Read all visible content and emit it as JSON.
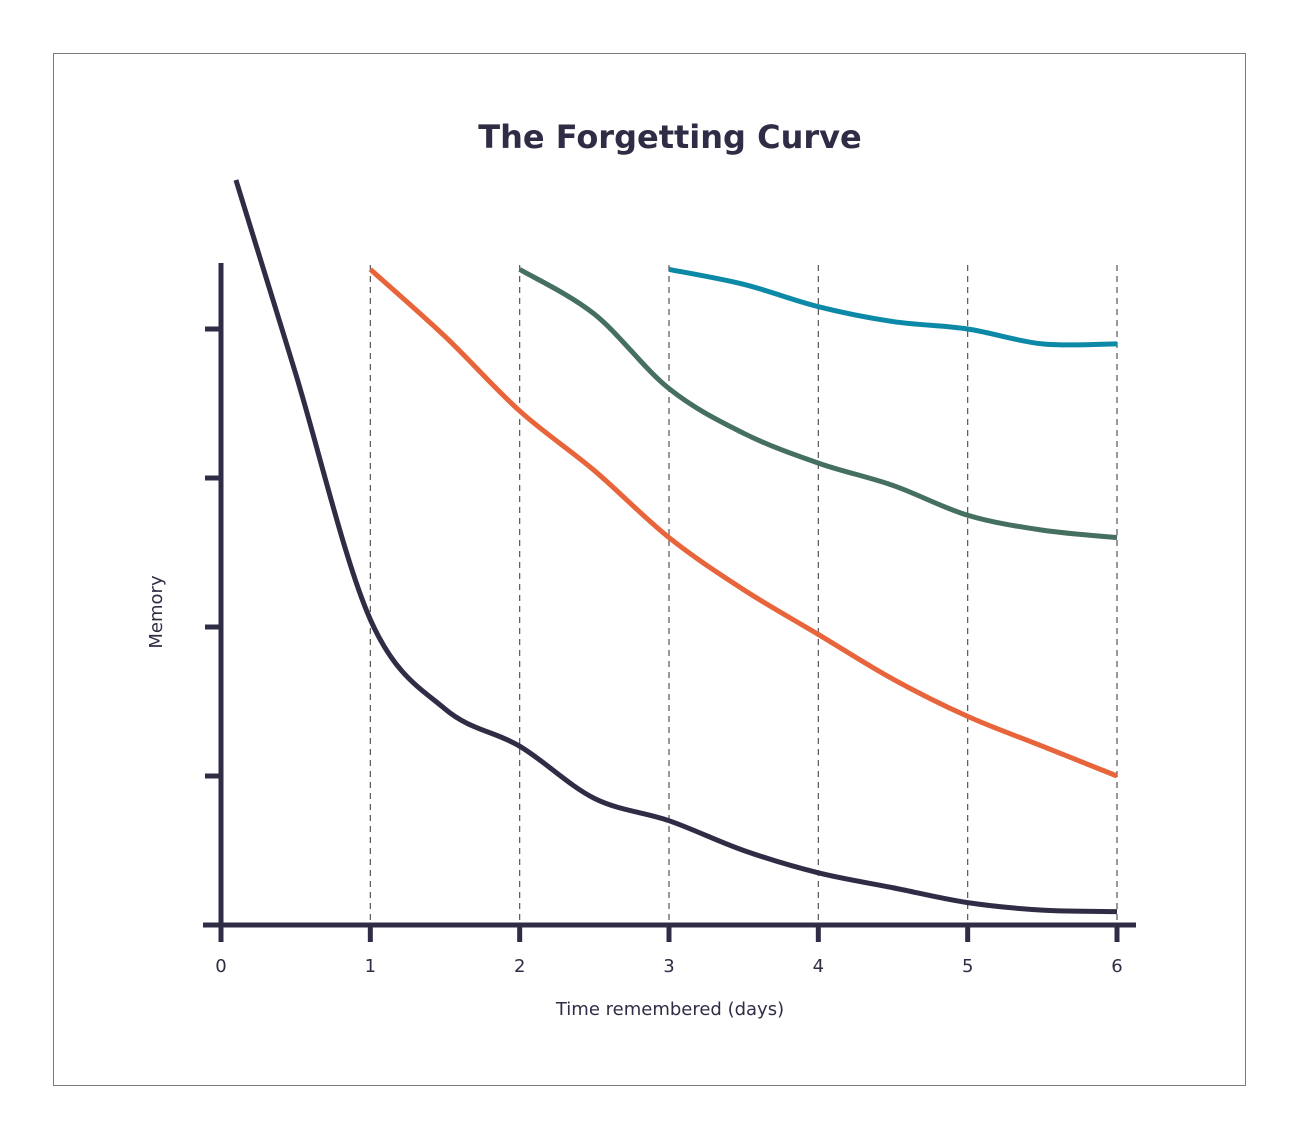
{
  "chart_data": {
    "type": "line",
    "title": "The Forgetting Curve",
    "xlabel": "Time remembered (days)",
    "ylabel": "Memory",
    "xlim": [
      0,
      6
    ],
    "ylim": [
      0,
      100
    ],
    "x_ticks": [
      "0",
      "1",
      "2",
      "3",
      "4",
      "5",
      "6"
    ],
    "y_tick_values": [
      20,
      40,
      60,
      80
    ],
    "grid": "dashed vertical lines at x = 1 to 6",
    "legend": "none",
    "series": [
      {
        "color": "#2f2d46",
        "start": 0.1,
        "x": [
          0.1,
          0.5,
          1,
          1.5,
          2,
          2.5,
          3,
          3.5,
          4,
          4.5,
          5,
          5.5,
          6
        ],
        "values": [
          100,
          74,
          41,
          29,
          24,
          17,
          14,
          10,
          7,
          5,
          3,
          2,
          1.8
        ]
      },
      {
        "color": "#e8643a",
        "start": 1,
        "x": [
          1,
          1.5,
          2,
          2.5,
          3,
          3.5,
          4,
          4.5,
          5,
          5.5,
          6
        ],
        "values": [
          88,
          79,
          69,
          61,
          52,
          45,
          39,
          33,
          28,
          24,
          20
        ]
      },
      {
        "color": "#456f5f",
        "start": 2,
        "x": [
          2,
          2.5,
          3,
          3.5,
          4,
          4.5,
          5,
          5.5,
          6
        ],
        "values": [
          88,
          82,
          72,
          66,
          62,
          59,
          55,
          53,
          52
        ]
      },
      {
        "color": "#0c89a6",
        "start": 3,
        "x": [
          3,
          3.5,
          4,
          4.5,
          5,
          5.5,
          6
        ],
        "values": [
          88,
          86,
          83,
          81,
          80,
          78,
          78
        ]
      }
    ]
  }
}
